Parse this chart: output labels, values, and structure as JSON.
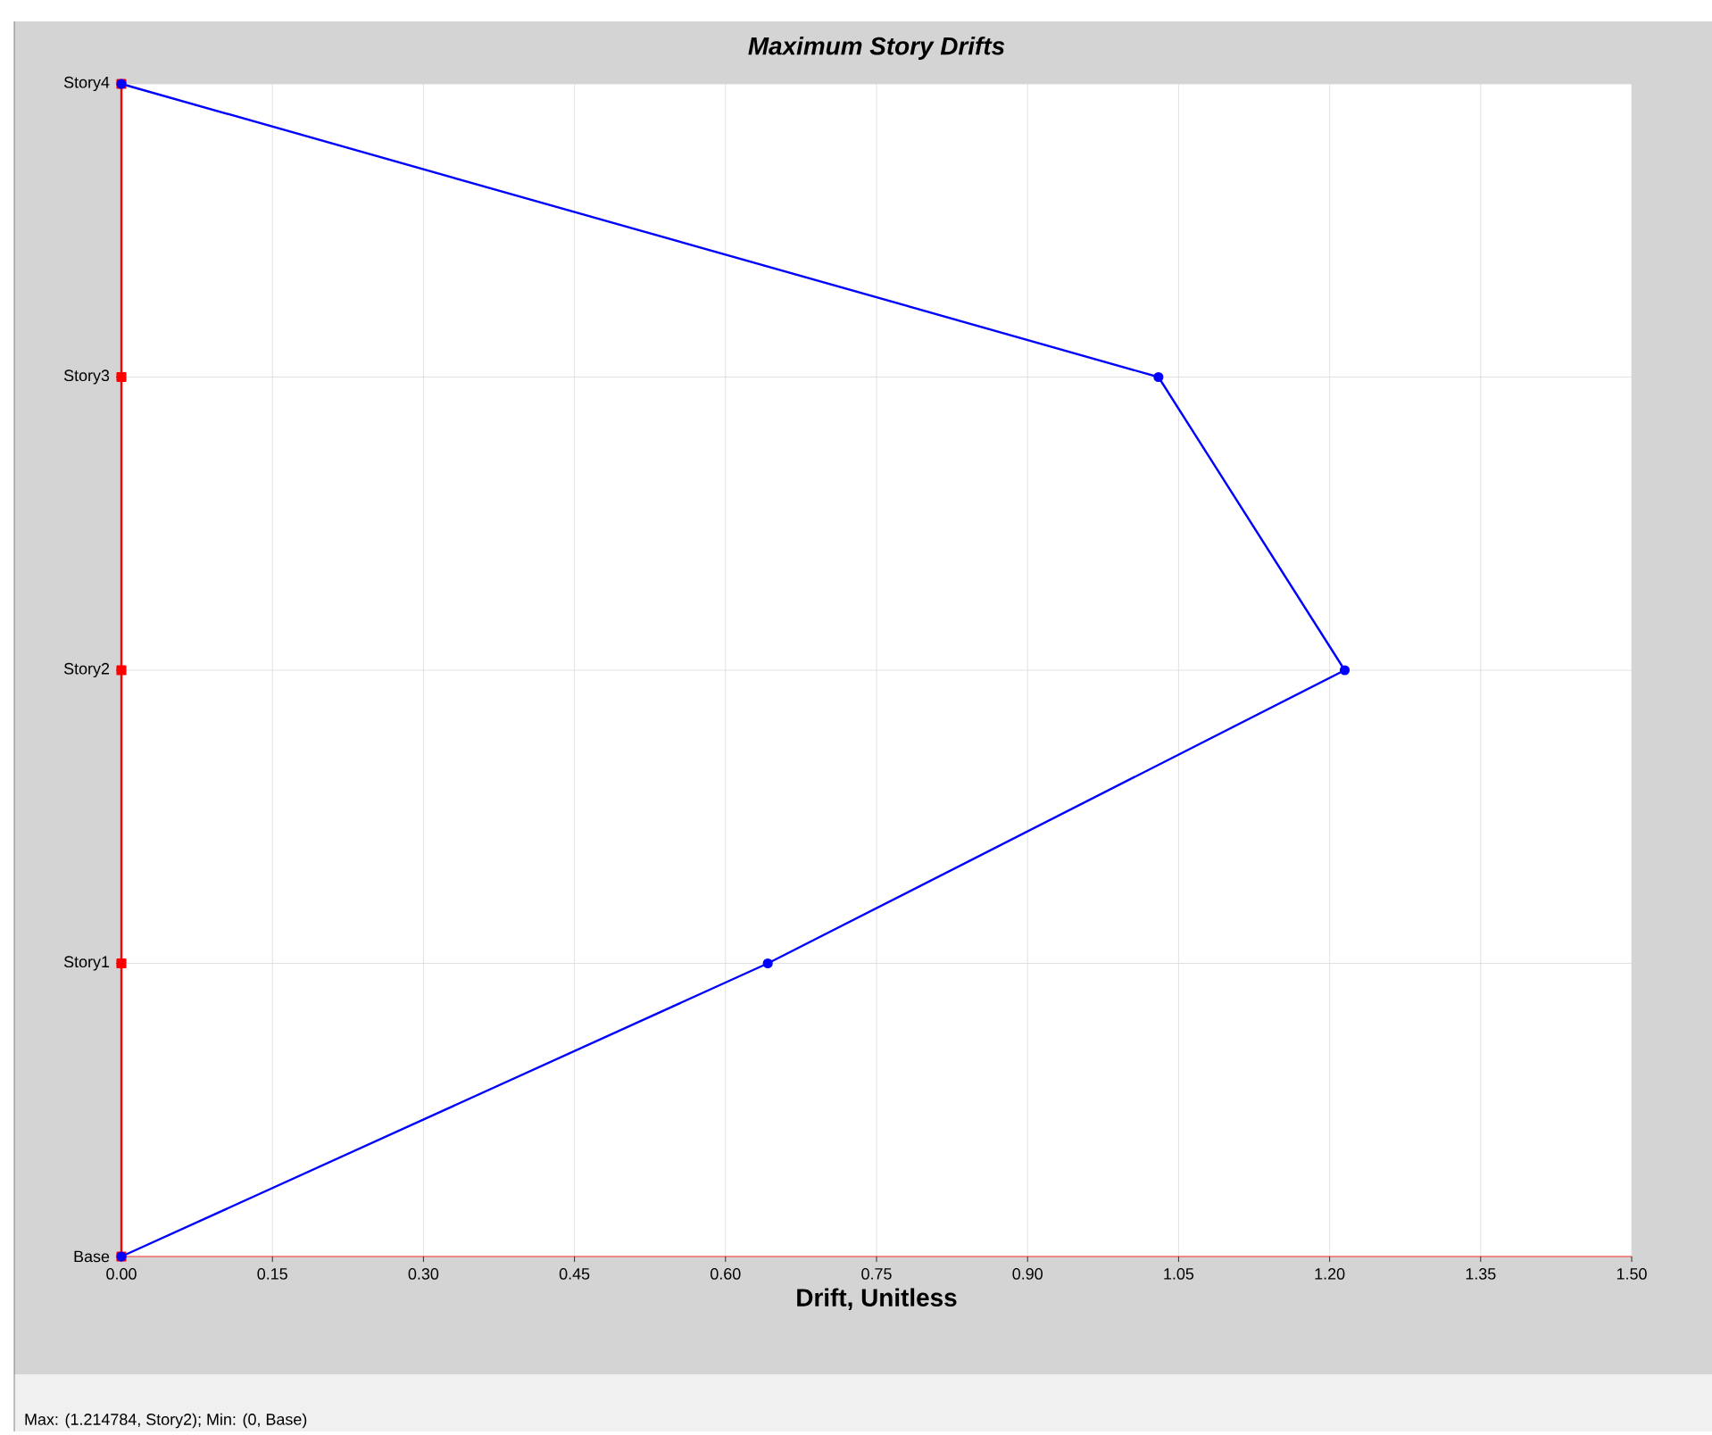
{
  "chart_data": {
    "type": "line",
    "orientation": "horizontal",
    "title": "Maximum Story Drifts",
    "xlabel": "Drift, Unitless",
    "categories": [
      "Story4",
      "Story3",
      "Story2",
      "Story1",
      "Base"
    ],
    "xlim": [
      0,
      1.5
    ],
    "xticks": [
      {
        "value": 0,
        "label": "0.00"
      },
      {
        "value": 0.15,
        "label": "0.15"
      },
      {
        "value": 0.3,
        "label": "0.30"
      },
      {
        "value": 0.45,
        "label": "0.45"
      },
      {
        "value": 0.6,
        "label": "0.60"
      },
      {
        "value": 0.75,
        "label": "0.75"
      },
      {
        "value": 0.9,
        "label": "0.90"
      },
      {
        "value": 1.05,
        "label": "1.05"
      },
      {
        "value": 1.2,
        "label": "1.20"
      },
      {
        "value": 1.35,
        "label": "1.35"
      },
      {
        "value": 1.5,
        "label": "1.50"
      }
    ],
    "series": [
      {
        "color": "#ff0000",
        "marker": "square",
        "values": [
          0,
          0,
          0,
          0,
          0
        ]
      },
      {
        "color": "#0000ff",
        "marker": "circle",
        "values": [
          0,
          1.03,
          1.215,
          0.642,
          0
        ]
      }
    ],
    "grid": true,
    "annotations": [
      "Max: (1.214784, Story2);   Min: (0, Base)"
    ]
  }
}
